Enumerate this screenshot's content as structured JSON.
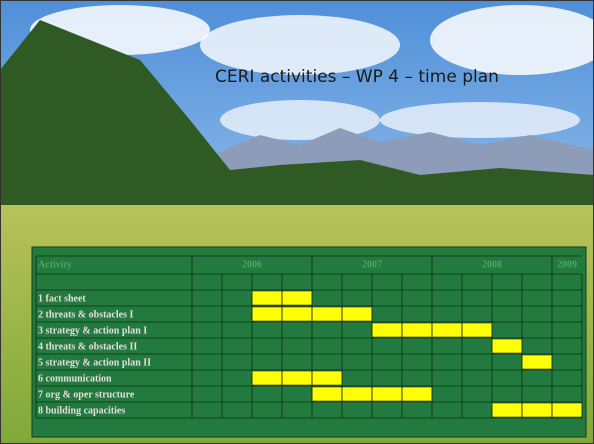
{
  "title": "CERI activities – WP 4 – time plan",
  "table": {
    "header": {
      "activity": "Activity",
      "years": [
        {
          "label": "2006",
          "span": 4
        },
        {
          "label": "2007",
          "span": 4
        },
        {
          "label": "2008",
          "span": 4
        },
        {
          "label": "2009",
          "span": 1
        }
      ]
    },
    "rows": [
      {
        "label": "1 fact sheet",
        "active": [
          false,
          false,
          true,
          true,
          false,
          false,
          false,
          false,
          false,
          false,
          false,
          false,
          false
        ]
      },
      {
        "label": "2 threats & obstacles I",
        "active": [
          false,
          false,
          true,
          true,
          true,
          true,
          false,
          false,
          false,
          false,
          false,
          false,
          false
        ]
      },
      {
        "label": "3 strategy & action plan I",
        "active": [
          false,
          false,
          false,
          false,
          false,
          false,
          true,
          true,
          true,
          true,
          false,
          false,
          false
        ]
      },
      {
        "label": "4 threats & obstacles II",
        "active": [
          false,
          false,
          false,
          false,
          false,
          false,
          false,
          false,
          false,
          false,
          true,
          false,
          false
        ]
      },
      {
        "label": "5 strategy & action plan II",
        "active": [
          false,
          false,
          false,
          false,
          false,
          false,
          false,
          false,
          false,
          false,
          false,
          true,
          false
        ]
      },
      {
        "label": "6 communication",
        "active": [
          false,
          false,
          true,
          true,
          true,
          false,
          false,
          false,
          false,
          false,
          false,
          false,
          false
        ]
      },
      {
        "label": "7 org & oper structure",
        "active": [
          false,
          false,
          false,
          false,
          true,
          true,
          true,
          true,
          false,
          false,
          false,
          false,
          false
        ]
      },
      {
        "label": "8 building capacities",
        "active": [
          false,
          false,
          false,
          false,
          false,
          false,
          false,
          false,
          false,
          false,
          true,
          true,
          true
        ]
      }
    ]
  }
}
